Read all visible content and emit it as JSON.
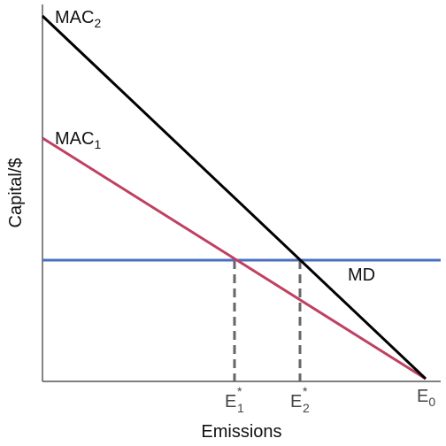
{
  "axes": {
    "x_label": "Emissions",
    "y_label": "Capital/$"
  },
  "curves": [
    {
      "label": "MAC",
      "subscript": "2"
    },
    {
      "label": "MAC",
      "subscript": "1"
    },
    {
      "label": "MD"
    }
  ],
  "x_ticks": [
    {
      "label": "E",
      "superscript": "*",
      "subscript": "1"
    },
    {
      "label": "E",
      "superscript": "*",
      "subscript": "2"
    },
    {
      "label": "E",
      "subscript": "0"
    }
  ]
}
